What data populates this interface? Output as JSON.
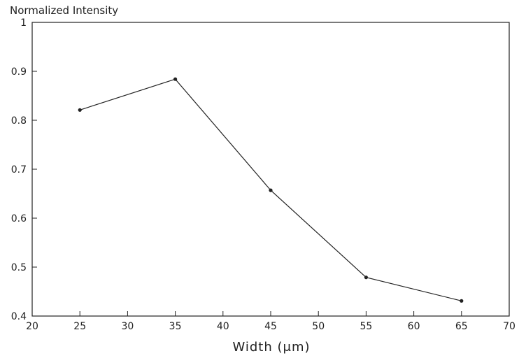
{
  "chart_data": {
    "type": "line",
    "title": "",
    "ylabel": "Normalized Intensity",
    "xlabel": "Width (μm)",
    "xlim": [
      20,
      70
    ],
    "ylim": [
      0.4,
      1.0
    ],
    "x_ticks": [
      20,
      25,
      30,
      35,
      40,
      45,
      50,
      55,
      60,
      65,
      70
    ],
    "x_tick_labels": [
      "20",
      "25",
      "30",
      "35",
      "40",
      "45",
      "50",
      "55",
      "60",
      "65",
      "70"
    ],
    "y_ticks": [
      0.4,
      0.5,
      0.6,
      0.7,
      0.8,
      0.9,
      1.0
    ],
    "y_tick_labels": [
      "0.4",
      "0.5",
      "0.6",
      "0.7",
      "0.8",
      "0.9",
      "1"
    ],
    "grid": false,
    "series": [
      {
        "x": [
          25,
          35,
          45,
          55,
          65
        ],
        "values": [
          0.821,
          0.884,
          0.657,
          0.479,
          0.431
        ],
        "color": "#222222",
        "marker": "dot"
      }
    ]
  }
}
